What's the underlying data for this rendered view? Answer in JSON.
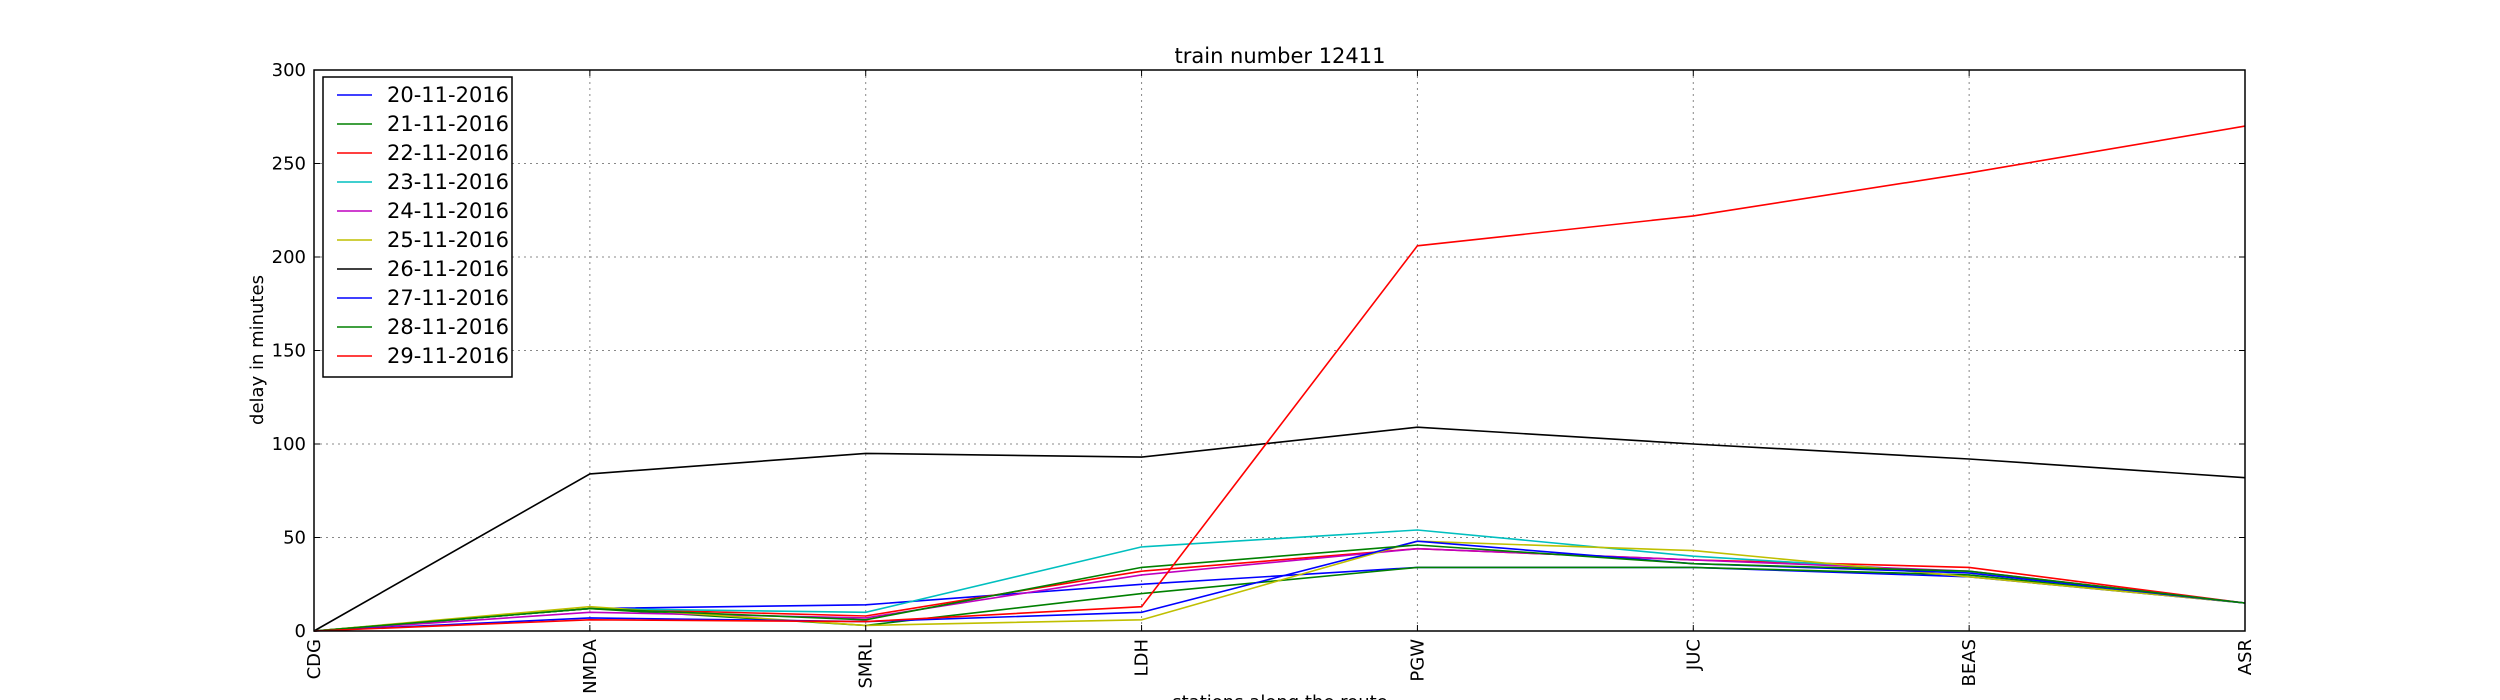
{
  "chart_data": {
    "type": "line",
    "title": "train number 12411",
    "xlabel": "stations along the route",
    "ylabel": "delay in minutes",
    "categories": [
      "CDG",
      "NMDA",
      "SMRL",
      "LDH",
      "PGW",
      "JUC",
      "BEAS",
      "ASR"
    ],
    "yticks": [
      "0",
      "50",
      "100",
      "150",
      "200",
      "250",
      "300"
    ],
    "ylim": [
      0,
      300
    ],
    "grid": true,
    "legend_position": "top-left",
    "series": [
      {
        "name": "20-11-2016",
        "color": "#0000ff",
        "values": [
          0,
          12,
          14,
          25,
          34,
          34,
          29,
          15
        ]
      },
      {
        "name": "21-11-2016",
        "color": "#008000",
        "values": [
          0,
          12,
          3,
          20,
          34,
          34,
          30,
          15
        ]
      },
      {
        "name": "22-11-2016",
        "color": "#ff0000",
        "values": [
          0,
          12,
          8,
          32,
          44,
          38,
          34,
          15
        ]
      },
      {
        "name": "23-11-2016",
        "color": "#00bfbf",
        "values": [
          0,
          12,
          10,
          45,
          54,
          40,
          31,
          15
        ]
      },
      {
        "name": "24-11-2016",
        "color": "#bf00bf",
        "values": [
          0,
          10,
          7,
          30,
          44,
          38,
          32,
          15
        ]
      },
      {
        "name": "25-11-2016",
        "color": "#bfbf00",
        "values": [
          0,
          13,
          3,
          6,
          48,
          43,
          29,
          15
        ]
      },
      {
        "name": "26-11-2016",
        "color": "#000000",
        "values": [
          0,
          84,
          95,
          93,
          109,
          100,
          92,
          82
        ]
      },
      {
        "name": "27-11-2016",
        "color": "#0000ff",
        "values": [
          0,
          7,
          5,
          10,
          48,
          36,
          31,
          15
        ]
      },
      {
        "name": "28-11-2016",
        "color": "#008000",
        "values": [
          0,
          12,
          6,
          34,
          46,
          36,
          32,
          15
        ]
      },
      {
        "name": "29-11-2016",
        "color": "#ff0000",
        "values": [
          0,
          6,
          5,
          13,
          206,
          222,
          245,
          270
        ]
      }
    ]
  }
}
